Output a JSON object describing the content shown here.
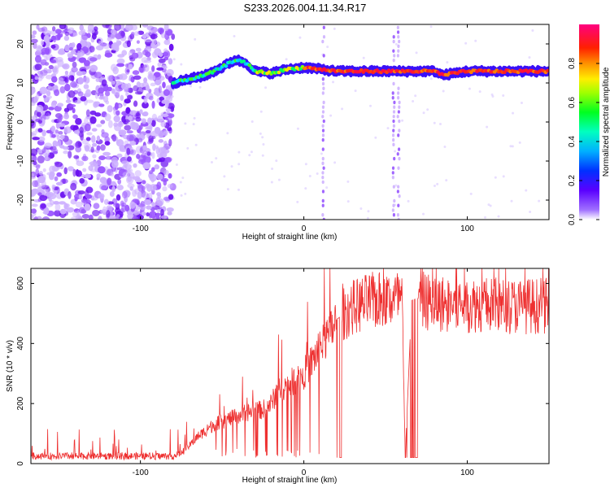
{
  "title": "S233.2026.004.11.34.R17",
  "colors": {
    "snr_line": "#ee3030",
    "frame": "#000000",
    "low_amp": "#7a1cff",
    "track": "#ff2020"
  },
  "chart_data": [
    {
      "type": "heatmap",
      "xlabel": "Height of straight line (km)",
      "ylabel": "Frequency (Hz)",
      "xlim": [
        -167,
        150
      ],
      "ylim": [
        -25,
        25
      ],
      "x_ticks": [
        -100,
        0,
        100
      ],
      "y_ticks": [
        -20,
        -10,
        0,
        10,
        20
      ],
      "colorbar": {
        "label": "Normalized spectral amplitude",
        "range": [
          0.0,
          1.0
        ],
        "ticks": [
          0.0,
          0.2,
          0.4,
          0.6,
          0.8
        ],
        "colormap": "rainbow (purple → blue → cyan → green → yellow → red → magenta)"
      },
      "noise_region_x": [
        -167,
        -80
      ],
      "tone_track": {
        "x": [
          -80,
          -70,
          -60,
          -50,
          -42,
          -35,
          -30,
          -20,
          -10,
          0,
          10,
          20,
          40,
          60,
          80,
          85,
          100,
          120,
          150
        ],
        "frequency_hz": [
          10,
          11,
          12,
          14,
          16,
          15,
          13,
          12.5,
          13.5,
          14,
          13.5,
          13,
          13,
          13,
          13,
          12,
          13,
          13,
          13
        ]
      },
      "vertical_artifacts_x": [
        12,
        55,
        58
      ]
    },
    {
      "type": "line",
      "xlabel": "Height of straight line (km)",
      "ylabel": "SNR (10 * v/v)",
      "xlim": [
        -167,
        150
      ],
      "ylim": [
        0,
        650
      ],
      "x_ticks": [
        -100,
        0,
        100
      ],
      "y_ticks": [
        0,
        200,
        400,
        600
      ],
      "series": [
        {
          "x": [
            -167,
            -140,
            -120,
            -100,
            -80,
            -75,
            -70,
            -65,
            -60,
            -55,
            -50,
            -45,
            -40,
            -35,
            -30,
            -25,
            -20,
            -15,
            -10,
            -5,
            0,
            5,
            10,
            15,
            20,
            25,
            30,
            40,
            50,
            60,
            62,
            66,
            70,
            75,
            80,
            90,
            100,
            110,
            120,
            130,
            140,
            150
          ],
          "values": [
            25,
            25,
            25,
            25,
            25,
            35,
            60,
            90,
            110,
            130,
            140,
            150,
            160,
            170,
            175,
            180,
            200,
            250,
            260,
            280,
            300,
            340,
            390,
            420,
            480,
            500,
            520,
            540,
            545,
            550,
            20,
            545,
            550,
            540,
            535,
            530,
            530,
            530,
            525,
            525,
            525,
            525
          ]
        }
      ],
      "dropout_x_ranges": [
        [
          20,
          23
        ],
        [
          62,
          70
        ]
      ]
    }
  ]
}
